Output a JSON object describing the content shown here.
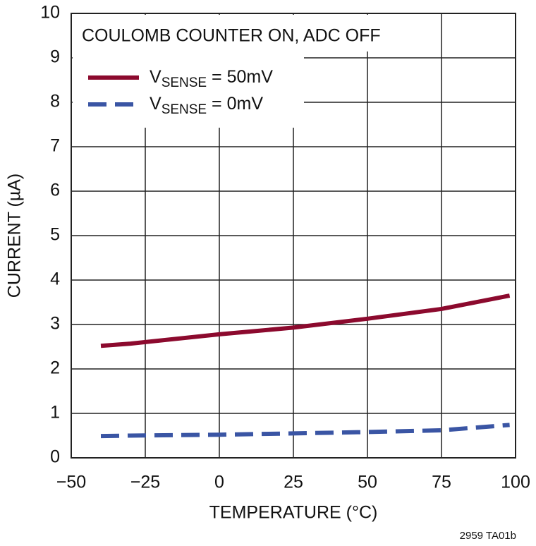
{
  "chart_data": {
    "type": "line",
    "annotation": "COULOMB COUNTER ON, ADC OFF",
    "xlabel": "TEMPERATURE (°C)",
    "ylabel": "CURRENT (µA)",
    "footnote": "2959 TA01b",
    "x": [
      -40,
      -30,
      0,
      25,
      50,
      75,
      98
    ],
    "series": [
      {
        "name": "VSENSE = 50mV",
        "color": "#8c0a2e",
        "dash": false,
        "values": [
          2.52,
          2.57,
          2.78,
          2.93,
          3.13,
          3.35,
          3.65
        ]
      },
      {
        "name": "VSENSE = 0mV",
        "color": "#3a55a4",
        "dash": true,
        "values": [
          0.49,
          0.5,
          0.52,
          0.55,
          0.58,
          0.62,
          0.74
        ]
      }
    ],
    "xlim": [
      -50,
      100
    ],
    "xticks": [
      {
        "value": -50,
        "label": "−50"
      },
      {
        "value": -25,
        "label": "−25"
      },
      0,
      25,
      50,
      75,
      100
    ],
    "ylim": [
      0,
      10
    ],
    "yticks": [
      0,
      1,
      2,
      3,
      4,
      5,
      6,
      7,
      8,
      9,
      10
    ],
    "grid": true
  }
}
